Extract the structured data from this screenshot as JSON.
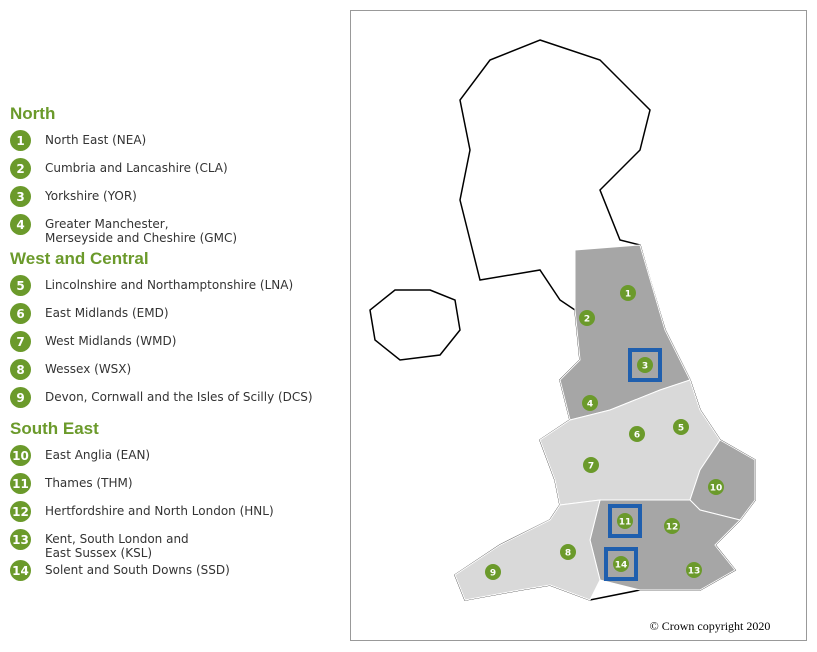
{
  "legend": {
    "groups": [
      {
        "title": "North",
        "items": [
          {
            "number": "1",
            "label": "North East (NEA)"
          },
          {
            "number": "2",
            "label": "Cumbria and Lancashire (CLA)"
          },
          {
            "number": "3",
            "label": "Yorkshire (YOR)"
          },
          {
            "number": "4",
            "label": "Greater Manchester,\nMerseyside and Cheshire (GMC)"
          }
        ]
      },
      {
        "title": "West and Central",
        "items": [
          {
            "number": "5",
            "label": "Lincolnshire and Northamptonshire (LNA)"
          },
          {
            "number": "6",
            "label": "East Midlands (EMD)"
          },
          {
            "number": "7",
            "label": "West Midlands (WMD)"
          },
          {
            "number": "8",
            "label": "Wessex (WSX)"
          },
          {
            "number": "9",
            "label": "Devon, Cornwall and the Isles of Scilly (DCS)"
          }
        ]
      },
      {
        "title": "South East",
        "items": [
          {
            "number": "10",
            "label": "East Anglia (EAN)"
          },
          {
            "number": "11",
            "label": "Thames (THM)"
          },
          {
            "number": "12",
            "label": "Hertfordshire and North London (HNL)"
          },
          {
            "number": "13",
            "label": "Kent, South London and\nEast Sussex (KSL)"
          },
          {
            "number": "14",
            "label": "Solent and South Downs (SSD)"
          }
        ]
      }
    ]
  },
  "map": {
    "markers": [
      {
        "number": "1",
        "highlighted": false
      },
      {
        "number": "2",
        "highlighted": false
      },
      {
        "number": "3",
        "highlighted": true
      },
      {
        "number": "4",
        "highlighted": false
      },
      {
        "number": "5",
        "highlighted": false
      },
      {
        "number": "6",
        "highlighted": false
      },
      {
        "number": "7",
        "highlighted": false
      },
      {
        "number": "8",
        "highlighted": false
      },
      {
        "number": "9",
        "highlighted": false
      },
      {
        "number": "10",
        "highlighted": false
      },
      {
        "number": "11",
        "highlighted": true
      },
      {
        "number": "12",
        "highlighted": false
      },
      {
        "number": "13",
        "highlighted": false
      },
      {
        "number": "14",
        "highlighted": true
      }
    ],
    "copyright": "© Crown copyright 2020"
  }
}
